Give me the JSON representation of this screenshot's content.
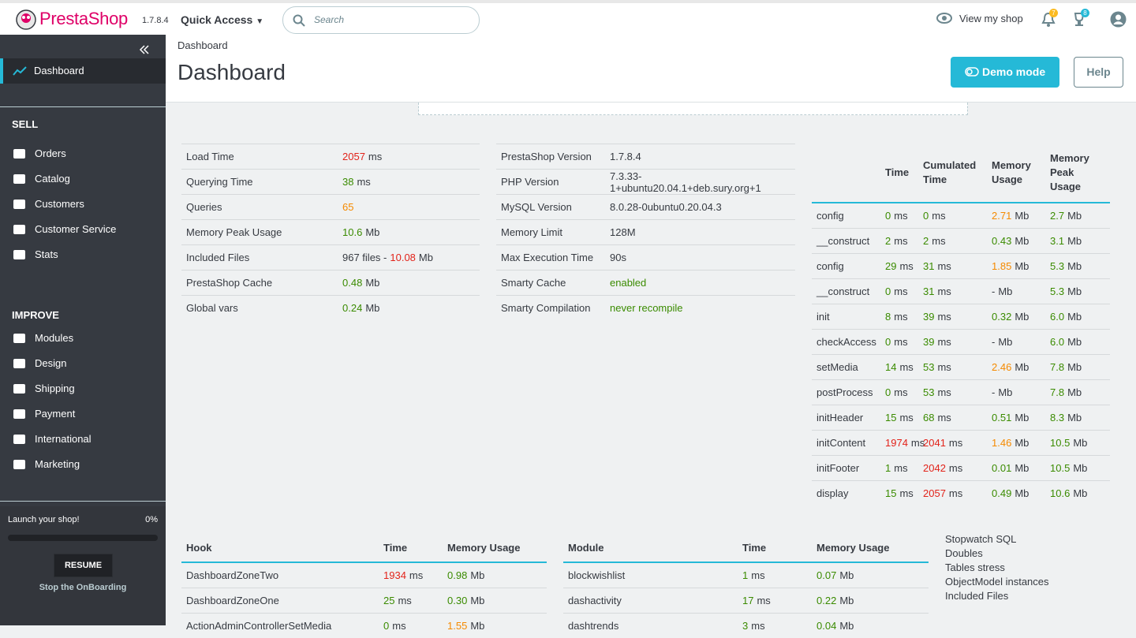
{
  "topbar": {
    "logo": "PrestaShop",
    "version": "1.7.8.4",
    "quick_access": "Quick Access",
    "search_placeholder": "Search",
    "view_shop": "View my shop",
    "badges": [
      "7",
      "8"
    ]
  },
  "sidebar": {
    "active": "Dashboard",
    "sections": [
      {
        "title": "SELL",
        "items": [
          "Orders",
          "Catalog",
          "Customers",
          "Customer Service",
          "Stats"
        ]
      },
      {
        "title": "IMPROVE",
        "items": [
          "Modules",
          "Design",
          "Shipping",
          "Payment",
          "International",
          "Marketing"
        ]
      }
    ],
    "onboarding": {
      "label": "Launch your shop!",
      "percent": "0%",
      "button": "RESUME",
      "stop": "Stop the OnBoarding"
    }
  },
  "header": {
    "breadcrumb": "Dashboard",
    "title": "Dashboard",
    "demo_button": "Demo mode",
    "help_button": "Help"
  },
  "debug": {
    "performance": {
      "rows": [
        {
          "name": "Load Time",
          "cells": [
            [
              {
                "text": "2057",
                "color": "red"
              },
              {
                "text": "ms"
              }
            ]
          ]
        },
        {
          "name": "Querying Time",
          "cells": [
            [
              {
                "text": "38",
                "color": "green"
              },
              {
                "text": "ms"
              }
            ]
          ]
        },
        {
          "name": "Queries",
          "cells": [
            [
              {
                "text": "65",
                "color": "orange"
              }
            ]
          ]
        },
        {
          "name": "Memory Peak Usage",
          "cells": [
            [
              {
                "text": "10.6",
                "color": "green"
              },
              {
                "text": "Mb"
              }
            ]
          ]
        },
        {
          "name": "Included Files",
          "cells": [
            [
              {
                "text": "967 files -"
              },
              {
                "text": "10.08",
                "color": "red"
              },
              {
                "text": "Mb"
              }
            ]
          ]
        },
        {
          "name": "PrestaShop Cache",
          "cells": [
            [
              {
                "text": "0.48",
                "color": "green"
              },
              {
                "text": "Mb"
              }
            ]
          ]
        },
        {
          "name": "Global vars",
          "cells": [
            [
              {
                "text": "0.24",
                "color": "green"
              },
              {
                "text": "Mb"
              }
            ]
          ]
        }
      ]
    },
    "config": {
      "rows": [
        {
          "name": "PrestaShop Version",
          "cells": [
            [
              {
                "text": "1.7.8.4"
              }
            ]
          ]
        },
        {
          "name": "PHP Version",
          "cells": [
            [
              {
                "text": "7.3.33-1+ubuntu20.04.1+deb.sury.org+1"
              }
            ]
          ]
        },
        {
          "name": "MySQL Version",
          "cells": [
            [
              {
                "text": "8.0.28-0ubuntu0.20.04.3"
              }
            ]
          ]
        },
        {
          "name": "Memory Limit",
          "cells": [
            [
              {
                "text": "128M"
              }
            ]
          ]
        },
        {
          "name": "Max Execution Time",
          "cells": [
            [
              {
                "text": "90s"
              }
            ]
          ]
        },
        {
          "name": "Smarty Cache",
          "cells": [
            [
              {
                "text": "enabled",
                "color": "green"
              }
            ]
          ]
        },
        {
          "name": "Smarty Compilation",
          "cells": [
            [
              {
                "text": "never recompile",
                "color": "green"
              }
            ]
          ]
        }
      ]
    },
    "controller": {
      "headers": [
        "Time",
        "Cumulated Time",
        "Memory Usage",
        "Memory Peak Usage"
      ],
      "rows": [
        {
          "name": "config",
          "cells": [
            [
              {
                "text": "0",
                "color": "green"
              },
              {
                "text": "ms"
              }
            ],
            [
              {
                "text": "0",
                "color": "green"
              },
              {
                "text": "ms"
              }
            ],
            [
              {
                "text": "2.71",
                "color": "orange"
              },
              {
                "text": "Mb"
              }
            ],
            [
              {
                "text": "2.7",
                "color": "green"
              },
              {
                "text": "Mb"
              }
            ]
          ]
        },
        {
          "name": "__construct",
          "cells": [
            [
              {
                "text": "2",
                "color": "green"
              },
              {
                "text": "ms"
              }
            ],
            [
              {
                "text": "2",
                "color": "green"
              },
              {
                "text": "ms"
              }
            ],
            [
              {
                "text": "0.43",
                "color": "green"
              },
              {
                "text": "Mb"
              }
            ],
            [
              {
                "text": "3.1",
                "color": "green"
              },
              {
                "text": "Mb"
              }
            ]
          ]
        },
        {
          "name": "config",
          "cells": [
            [
              {
                "text": "29",
                "color": "green"
              },
              {
                "text": "ms"
              }
            ],
            [
              {
                "text": "31",
                "color": "green"
              },
              {
                "text": "ms"
              }
            ],
            [
              {
                "text": "1.85",
                "color": "orange"
              },
              {
                "text": "Mb"
              }
            ],
            [
              {
                "text": "5.3",
                "color": "green"
              },
              {
                "text": "Mb"
              }
            ]
          ]
        },
        {
          "name": "__construct",
          "cells": [
            [
              {
                "text": "0",
                "color": "green"
              },
              {
                "text": "ms"
              }
            ],
            [
              {
                "text": "31",
                "color": "green"
              },
              {
                "text": "ms"
              }
            ],
            [
              {
                "text": "-"
              },
              {
                "text": "Mb"
              }
            ],
            [
              {
                "text": "5.3",
                "color": "green"
              },
              {
                "text": "Mb"
              }
            ]
          ]
        },
        {
          "name": "init",
          "cells": [
            [
              {
                "text": "8",
                "color": "green"
              },
              {
                "text": "ms"
              }
            ],
            [
              {
                "text": "39",
                "color": "green"
              },
              {
                "text": "ms"
              }
            ],
            [
              {
                "text": "0.32",
                "color": "green"
              },
              {
                "text": "Mb"
              }
            ],
            [
              {
                "text": "6.0",
                "color": "green"
              },
              {
                "text": "Mb"
              }
            ]
          ]
        },
        {
          "name": "checkAccess",
          "cells": [
            [
              {
                "text": "0",
                "color": "green"
              },
              {
                "text": "ms"
              }
            ],
            [
              {
                "text": "39",
                "color": "green"
              },
              {
                "text": "ms"
              }
            ],
            [
              {
                "text": "-"
              },
              {
                "text": "Mb"
              }
            ],
            [
              {
                "text": "6.0",
                "color": "green"
              },
              {
                "text": "Mb"
              }
            ]
          ]
        },
        {
          "name": "setMedia",
          "cells": [
            [
              {
                "text": "14",
                "color": "green"
              },
              {
                "text": "ms"
              }
            ],
            [
              {
                "text": "53",
                "color": "green"
              },
              {
                "text": "ms"
              }
            ],
            [
              {
                "text": "2.46",
                "color": "orange"
              },
              {
                "text": "Mb"
              }
            ],
            [
              {
                "text": "7.8",
                "color": "green"
              },
              {
                "text": "Mb"
              }
            ]
          ]
        },
        {
          "name": "postProcess",
          "cells": [
            [
              {
                "text": "0",
                "color": "green"
              },
              {
                "text": "ms"
              }
            ],
            [
              {
                "text": "53",
                "color": "green"
              },
              {
                "text": "ms"
              }
            ],
            [
              {
                "text": "-"
              },
              {
                "text": "Mb"
              }
            ],
            [
              {
                "text": "7.8",
                "color": "green"
              },
              {
                "text": "Mb"
              }
            ]
          ]
        },
        {
          "name": "initHeader",
          "cells": [
            [
              {
                "text": "15",
                "color": "green"
              },
              {
                "text": "ms"
              }
            ],
            [
              {
                "text": "68",
                "color": "green"
              },
              {
                "text": "ms"
              }
            ],
            [
              {
                "text": "0.51",
                "color": "green"
              },
              {
                "text": "Mb"
              }
            ],
            [
              {
                "text": "8.3",
                "color": "green"
              },
              {
                "text": "Mb"
              }
            ]
          ]
        },
        {
          "name": "initContent",
          "cells": [
            [
              {
                "text": "1974",
                "color": "red"
              },
              {
                "text": "ms"
              }
            ],
            [
              {
                "text": "2041",
                "color": "red"
              },
              {
                "text": "ms"
              }
            ],
            [
              {
                "text": "1.46",
                "color": "orange"
              },
              {
                "text": "Mb"
              }
            ],
            [
              {
                "text": "10.5",
                "color": "green"
              },
              {
                "text": "Mb"
              }
            ]
          ]
        },
        {
          "name": "initFooter",
          "cells": [
            [
              {
                "text": "1",
                "color": "green"
              },
              {
                "text": "ms"
              }
            ],
            [
              {
                "text": "2042",
                "color": "red"
              },
              {
                "text": "ms"
              }
            ],
            [
              {
                "text": "0.01",
                "color": "green"
              },
              {
                "text": "Mb"
              }
            ],
            [
              {
                "text": "10.5",
                "color": "green"
              },
              {
                "text": "Mb"
              }
            ]
          ]
        },
        {
          "name": "display",
          "cells": [
            [
              {
                "text": "15",
                "color": "green"
              },
              {
                "text": "ms"
              }
            ],
            [
              {
                "text": "2057",
                "color": "red"
              },
              {
                "text": "ms"
              }
            ],
            [
              {
                "text": "0.49",
                "color": "green"
              },
              {
                "text": "Mb"
              }
            ],
            [
              {
                "text": "10.6",
                "color": "green"
              },
              {
                "text": "Mb"
              }
            ]
          ]
        }
      ]
    },
    "hooks": {
      "headers": [
        "Hook",
        "Time",
        "Memory Usage"
      ],
      "rows": [
        {
          "name": "DashboardZoneTwo",
          "cells": [
            [
              {
                "text": "1934",
                "color": "red"
              },
              {
                "text": "ms"
              }
            ],
            [
              {
                "text": "0.98",
                "color": "green"
              },
              {
                "text": "Mb"
              }
            ]
          ]
        },
        {
          "name": "DashboardZoneOne",
          "cells": [
            [
              {
                "text": "25",
                "color": "green"
              },
              {
                "text": "ms"
              }
            ],
            [
              {
                "text": "0.30",
                "color": "green"
              },
              {
                "text": "Mb"
              }
            ]
          ]
        },
        {
          "name": "ActionAdminControllerSetMedia",
          "cells": [
            [
              {
                "text": "0",
                "color": "green"
              },
              {
                "text": "ms"
              }
            ],
            [
              {
                "text": "1.55",
                "color": "orange"
              },
              {
                "text": "Mb"
              }
            ]
          ]
        }
      ]
    },
    "modules": {
      "headers": [
        "Module",
        "Time",
        "Memory Usage"
      ],
      "rows": [
        {
          "name": "blockwishlist",
          "cells": [
            [
              {
                "text": "1",
                "color": "green"
              },
              {
                "text": "ms"
              }
            ],
            [
              {
                "text": "0.07",
                "color": "green"
              },
              {
                "text": "Mb"
              }
            ]
          ]
        },
        {
          "name": "dashactivity",
          "cells": [
            [
              {
                "text": "17",
                "color": "green"
              },
              {
                "text": "ms"
              }
            ],
            [
              {
                "text": "0.22",
                "color": "green"
              },
              {
                "text": "Mb"
              }
            ]
          ]
        },
        {
          "name": "dashtrends",
          "cells": [
            [
              {
                "text": "3",
                "color": "green"
              },
              {
                "text": "ms"
              }
            ],
            [
              {
                "text": "0.04",
                "color": "green"
              },
              {
                "text": "Mb"
              }
            ]
          ]
        }
      ]
    },
    "links": [
      "Stopwatch SQL",
      "Doubles",
      "Tables stress",
      "ObjectModel instances",
      "Included Files"
    ]
  }
}
